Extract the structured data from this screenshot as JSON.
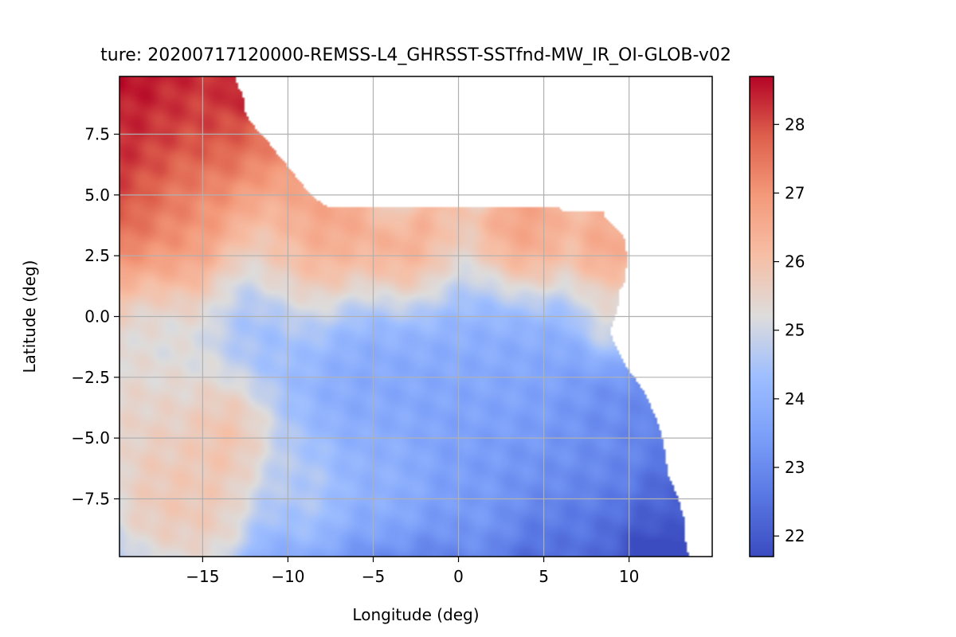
{
  "chart_data": {
    "type": "heatmap",
    "title": "ture: 20200717120000-REMSS-L4_GHRSST-SSTfnd-MW_IR_OI-GLOB-v02",
    "xlabel": "Longitude (deg)",
    "ylabel": "Latitude (deg)",
    "xlim": [
      -19.875,
      14.875
    ],
    "ylim": [
      -9.875,
      9.875
    ],
    "x_ticks": [
      -15,
      -10,
      -5,
      0,
      5,
      10
    ],
    "x_tick_labels": [
      "−15",
      "−10",
      "−5",
      "0",
      "5",
      "10"
    ],
    "y_ticks": [
      -7.5,
      -5.0,
      -2.5,
      0.0,
      2.5,
      5.0,
      7.5
    ],
    "y_tick_labels": [
      "−7.5",
      "−5.0",
      "−2.5",
      "0.0",
      "2.5",
      "5.0",
      "7.5"
    ],
    "grid": true,
    "colormap": "coolwarm",
    "colorbar": {
      "min": 21.7,
      "max": 28.7,
      "ticks": [
        22,
        23,
        24,
        25,
        26,
        27,
        28
      ],
      "tick_labels": [
        "22",
        "23",
        "24",
        "25",
        "26",
        "27",
        "28"
      ]
    },
    "coastline": [
      [
        -13.0,
        9.88
      ],
      [
        -13.0,
        9.6
      ],
      [
        -12.9,
        9.4
      ],
      [
        -12.7,
        9.2
      ],
      [
        -12.6,
        9.0
      ],
      [
        -12.6,
        8.5
      ],
      [
        -12.2,
        8.0
      ],
      [
        -11.3,
        7.3
      ],
      [
        -10.5,
        6.6
      ],
      [
        -9.8,
        6.0
      ],
      [
        -9.0,
        5.3
      ],
      [
        -8.3,
        4.8
      ],
      [
        -7.6,
        4.5
      ],
      [
        -6.8,
        4.8
      ],
      [
        -5.5,
        5.1
      ],
      [
        -4.5,
        5.2
      ],
      [
        -3.0,
        5.1
      ],
      [
        -2.0,
        5.0
      ],
      [
        -1.0,
        5.2
      ],
      [
        0.0,
        5.7
      ],
      [
        1.2,
        6.1
      ],
      [
        2.5,
        6.3
      ],
      [
        3.5,
        6.4
      ],
      [
        4.4,
        6.2
      ],
      [
        5.2,
        5.6
      ],
      [
        5.5,
        4.8
      ],
      [
        6.2,
        4.3
      ],
      [
        7.0,
        4.4
      ],
      [
        8.3,
        4.6
      ],
      [
        8.6,
        4.1
      ],
      [
        9.0,
        3.8
      ],
      [
        9.7,
        3.3
      ],
      [
        9.9,
        2.5
      ],
      [
        9.8,
        1.5
      ],
      [
        9.4,
        1.0
      ],
      [
        9.4,
        0.6
      ],
      [
        9.2,
        0.0
      ],
      [
        8.9,
        -0.6
      ],
      [
        9.2,
        -1.2
      ],
      [
        9.8,
        -2.0
      ],
      [
        10.8,
        -3.0
      ],
      [
        11.5,
        -4.0
      ],
      [
        11.9,
        -4.8
      ],
      [
        12.1,
        -5.5
      ],
      [
        12.3,
        -6.5
      ],
      [
        12.9,
        -7.5
      ],
      [
        13.3,
        -8.5
      ],
      [
        13.3,
        -9.2
      ],
      [
        13.5,
        -9.88
      ]
    ],
    "hotspots": [
      {
        "lon": -19.6,
        "lat": 6.6,
        "sst": 28.5,
        "r": 3.5
      },
      {
        "lon": -14.8,
        "lat": 8.6,
        "sst": 28.2,
        "r": 2.2
      },
      {
        "lon": -13.0,
        "lat": 9.2,
        "sst": 28.7,
        "r": 0.8
      },
      {
        "lon": -16.0,
        "lat": 3.8,
        "sst": 27.1,
        "r": 2.8
      },
      {
        "lon": -8.0,
        "lat": 2.6,
        "sst": 27.0,
        "r": 2.5
      },
      {
        "lon": -3.5,
        "lat": 2.8,
        "sst": 26.9,
        "r": 2.2
      },
      {
        "lon": 4.0,
        "lat": 3.5,
        "sst": 27.3,
        "r": 2.2
      },
      {
        "lon": 8.8,
        "lat": 2.8,
        "sst": 27.4,
        "r": 1.8
      },
      {
        "lon": -10.6,
        "lat": 2.4,
        "sst": 26.2,
        "r": 1.5
      },
      {
        "lon": -3.8,
        "lat": 4.9,
        "sst": 24.4,
        "r": 1.1
      },
      {
        "lon": 1.2,
        "lat": 5.6,
        "sst": 24.4,
        "r": 0.9
      },
      {
        "lon": 8.8,
        "lat": 0.0,
        "sst": 25.6,
        "r": 1.4
      },
      {
        "lon": -11.5,
        "lat": 0.0,
        "sst": 23.9,
        "r": 2.8
      },
      {
        "lon": -6.0,
        "lat": -1.5,
        "sst": 23.5,
        "r": 2.8
      },
      {
        "lon": -2.0,
        "lat": -3.0,
        "sst": 23.6,
        "r": 3.0
      },
      {
        "lon": 3.0,
        "lat": -2.5,
        "sst": 23.7,
        "r": 3.0
      },
      {
        "lon": -17.5,
        "lat": -1.2,
        "sst": 24.8,
        "r": 2.5
      },
      {
        "lon": -17.8,
        "lat": -3.6,
        "sst": 25.9,
        "r": 2.5
      },
      {
        "lon": -13.5,
        "lat": -5.0,
        "sst": 26.7,
        "r": 2.3
      },
      {
        "lon": -17.5,
        "lat": -7.8,
        "sst": 26.6,
        "r": 2.8
      },
      {
        "lon": -14.5,
        "lat": -8.5,
        "sst": 26.4,
        "r": 2.2
      },
      {
        "lon": -9.0,
        "lat": -7.5,
        "sst": 25.2,
        "r": 2.5
      },
      {
        "lon": -4.0,
        "lat": -7.0,
        "sst": 24.4,
        "r": 2.5
      },
      {
        "lon": 1.0,
        "lat": -8.0,
        "sst": 23.8,
        "r": 2.5
      },
      {
        "lon": 5.5,
        "lat": -6.0,
        "sst": 23.4,
        "r": 2.5
      },
      {
        "lon": 9.0,
        "lat": -5.5,
        "sst": 23.2,
        "r": 2.3
      },
      {
        "lon": 12.5,
        "lat": -7.8,
        "sst": 22.4,
        "r": 1.3
      },
      {
        "lon": 12.0,
        "lat": -4.5,
        "sst": 23.0,
        "r": 1.2
      },
      {
        "lon": 7.0,
        "lat": -9.5,
        "sst": 22.8,
        "r": 2.5
      }
    ]
  }
}
